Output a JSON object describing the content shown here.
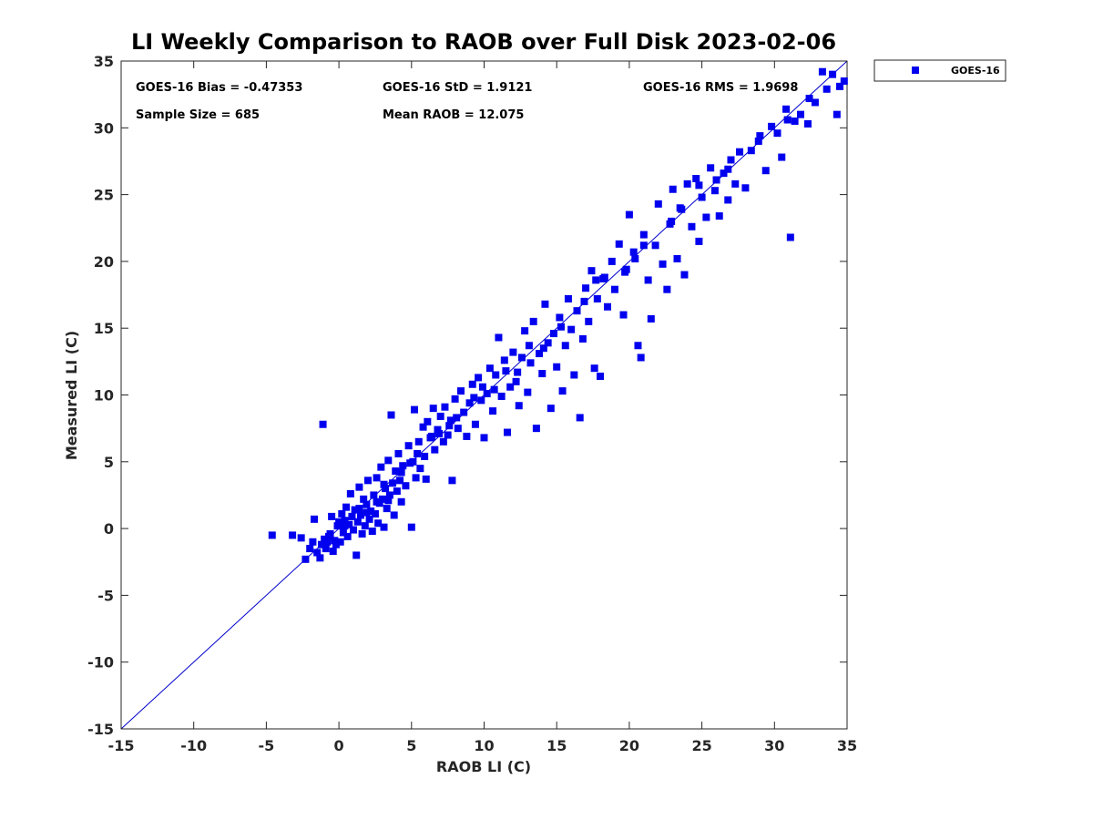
{
  "chart_data": {
    "type": "scatter",
    "title": "LI Weekly Comparison to RAOB over Full Disk 2023-02-06",
    "xlabel": "RAOB LI (C)",
    "ylabel": "Measured LI (C)",
    "xlim": [
      -15,
      35
    ],
    "ylim": [
      -15,
      35
    ],
    "xticks": [
      -15,
      -10,
      -5,
      0,
      5,
      10,
      15,
      20,
      25,
      30,
      35
    ],
    "yticks": [
      -15,
      -10,
      -5,
      0,
      5,
      10,
      15,
      20,
      25,
      30,
      35
    ],
    "grid": false,
    "legend_position": "outside-top-right",
    "reference_line": {
      "from": [
        -15,
        -15
      ],
      "to": [
        35,
        35
      ],
      "color": "#0000cc"
    },
    "stats": [
      {
        "label": "GOES-16 Bias = -0.47353"
      },
      {
        "label": "GOES-16 StD = 1.9121"
      },
      {
        "label": "GOES-16 RMS = 1.9698"
      },
      {
        "label": "Sample Size = 685"
      },
      {
        "label": "Mean RAOB = 12.075"
      }
    ],
    "series": [
      {
        "name": "GOES-16",
        "color": "#0000ee",
        "marker": "square",
        "points": [
          [
            -4.6,
            -0.5
          ],
          [
            -3.2,
            -0.5
          ],
          [
            -2.6,
            -0.7
          ],
          [
            -2.3,
            -2.3
          ],
          [
            -2.0,
            -1.5
          ],
          [
            -1.8,
            -1.0
          ],
          [
            -1.7,
            0.7
          ],
          [
            -1.5,
            -1.8
          ],
          [
            -1.3,
            -2.2
          ],
          [
            -1.2,
            -1.2
          ],
          [
            -1.1,
            7.8
          ],
          [
            -1.0,
            -0.8
          ],
          [
            -0.9,
            -1.5
          ],
          [
            -0.8,
            -1.0
          ],
          [
            -0.6,
            -0.4
          ],
          [
            -0.5,
            0.9
          ],
          [
            -0.4,
            -1.7
          ],
          [
            -0.3,
            -0.9
          ],
          [
            -0.2,
            -1.2
          ],
          [
            -0.1,
            0.2
          ],
          [
            0.0,
            0.5
          ],
          [
            0.1,
            -1.0
          ],
          [
            0.2,
            1.1
          ],
          [
            0.3,
            -0.3
          ],
          [
            0.4,
            0.6
          ],
          [
            0.5,
            1.6
          ],
          [
            0.6,
            -0.6
          ],
          [
            0.7,
            0.3
          ],
          [
            0.8,
            2.6
          ],
          [
            0.9,
            0.9
          ],
          [
            1.0,
            -0.1
          ],
          [
            1.1,
            1.4
          ],
          [
            1.2,
            -2.0
          ],
          [
            1.3,
            0.5
          ],
          [
            1.4,
            3.1
          ],
          [
            1.5,
            1.0
          ],
          [
            1.6,
            -0.4
          ],
          [
            1.7,
            2.2
          ],
          [
            1.8,
            0.2
          ],
          [
            1.9,
            1.8
          ],
          [
            2.0,
            3.6
          ],
          [
            2.1,
            0.7
          ],
          [
            2.2,
            1.3
          ],
          [
            2.3,
            -0.2
          ],
          [
            2.4,
            2.5
          ],
          [
            2.5,
            1.1
          ],
          [
            2.6,
            3.8
          ],
          [
            2.7,
            0.4
          ],
          [
            2.8,
            1.9
          ],
          [
            2.9,
            4.6
          ],
          [
            3.0,
            2.2
          ],
          [
            3.1,
            0.1
          ],
          [
            3.2,
            3.0
          ],
          [
            3.3,
            1.5
          ],
          [
            3.4,
            5.1
          ],
          [
            3.5,
            2.5
          ],
          [
            3.6,
            8.5
          ],
          [
            3.7,
            3.4
          ],
          [
            3.8,
            1.0
          ],
          [
            3.9,
            4.3
          ],
          [
            4.0,
            2.8
          ],
          [
            4.1,
            5.6
          ],
          [
            4.2,
            3.6
          ],
          [
            4.3,
            2.0
          ],
          [
            4.4,
            4.7
          ],
          [
            4.6,
            3.2
          ],
          [
            4.8,
            6.2
          ],
          [
            5.0,
            0.1
          ],
          [
            5.1,
            5.0
          ],
          [
            5.2,
            8.9
          ],
          [
            5.3,
            3.8
          ],
          [
            5.5,
            6.5
          ],
          [
            5.6,
            4.5
          ],
          [
            5.8,
            7.6
          ],
          [
            5.9,
            5.4
          ],
          [
            6.0,
            3.7
          ],
          [
            6.1,
            8.0
          ],
          [
            6.3,
            6.8
          ],
          [
            6.5,
            9.0
          ],
          [
            6.6,
            5.9
          ],
          [
            6.8,
            7.4
          ],
          [
            7.0,
            8.4
          ],
          [
            7.2,
            6.5
          ],
          [
            7.3,
            9.1
          ],
          [
            7.5,
            7.0
          ],
          [
            7.7,
            8.1
          ],
          [
            7.8,
            3.6
          ],
          [
            8.0,
            9.7
          ],
          [
            8.2,
            7.5
          ],
          [
            8.4,
            10.3
          ],
          [
            8.6,
            8.7
          ],
          [
            8.8,
            6.9
          ],
          [
            9.0,
            9.4
          ],
          [
            9.2,
            10.8
          ],
          [
            9.4,
            7.8
          ],
          [
            9.6,
            11.3
          ],
          [
            9.8,
            9.6
          ],
          [
            10.0,
            6.8
          ],
          [
            10.2,
            10.1
          ],
          [
            10.4,
            12.0
          ],
          [
            10.6,
            8.8
          ],
          [
            10.8,
            11.5
          ],
          [
            11.0,
            14.3
          ],
          [
            11.2,
            9.9
          ],
          [
            11.4,
            12.6
          ],
          [
            11.6,
            7.2
          ],
          [
            11.8,
            10.6
          ],
          [
            12.0,
            13.2
          ],
          [
            12.2,
            11.0
          ],
          [
            12.4,
            9.2
          ],
          [
            12.6,
            12.8
          ],
          [
            12.8,
            14.8
          ],
          [
            13.0,
            10.2
          ],
          [
            13.2,
            12.4
          ],
          [
            13.4,
            15.5
          ],
          [
            13.6,
            7.5
          ],
          [
            13.8,
            13.1
          ],
          [
            14.0,
            11.6
          ],
          [
            14.2,
            16.8
          ],
          [
            14.4,
            13.9
          ],
          [
            14.6,
            9.0
          ],
          [
            14.8,
            14.6
          ],
          [
            15.0,
            12.1
          ],
          [
            15.2,
            15.8
          ],
          [
            15.4,
            10.3
          ],
          [
            15.6,
            13.7
          ],
          [
            15.8,
            17.2
          ],
          [
            16.0,
            14.9
          ],
          [
            16.2,
            11.5
          ],
          [
            16.4,
            16.3
          ],
          [
            16.6,
            8.3
          ],
          [
            16.8,
            14.2
          ],
          [
            17.0,
            18.0
          ],
          [
            17.2,
            15.5
          ],
          [
            17.4,
            19.3
          ],
          [
            17.6,
            12.0
          ],
          [
            17.8,
            17.2
          ],
          [
            18.0,
            11.4
          ],
          [
            18.2,
            18.7
          ],
          [
            18.5,
            16.6
          ],
          [
            18.8,
            20.0
          ],
          [
            19.0,
            17.9
          ],
          [
            19.3,
            21.3
          ],
          [
            19.6,
            16.0
          ],
          [
            19.8,
            19.4
          ],
          [
            20.0,
            23.5
          ],
          [
            20.3,
            20.7
          ],
          [
            20.6,
            13.7
          ],
          [
            20.8,
            12.8
          ],
          [
            21.0,
            22.0
          ],
          [
            21.3,
            18.6
          ],
          [
            21.5,
            15.7
          ],
          [
            21.8,
            21.2
          ],
          [
            22.0,
            24.3
          ],
          [
            22.3,
            19.8
          ],
          [
            22.6,
            17.9
          ],
          [
            22.8,
            22.8
          ],
          [
            23.0,
            25.4
          ],
          [
            23.3,
            20.2
          ],
          [
            23.5,
            24.0
          ],
          [
            23.8,
            19.0
          ],
          [
            24.0,
            25.8
          ],
          [
            24.3,
            22.6
          ],
          [
            24.6,
            26.2
          ],
          [
            24.8,
            21.5
          ],
          [
            25.0,
            24.8
          ],
          [
            25.3,
            23.3
          ],
          [
            25.6,
            27.0
          ],
          [
            25.9,
            25.3
          ],
          [
            26.2,
            23.4
          ],
          [
            26.5,
            26.6
          ],
          [
            26.8,
            24.6
          ],
          [
            27.0,
            27.6
          ],
          [
            27.3,
            25.8
          ],
          [
            27.6,
            28.2
          ],
          [
            28.0,
            25.5
          ],
          [
            28.4,
            28.3
          ],
          [
            28.9,
            29.0
          ],
          [
            29.4,
            26.8
          ],
          [
            29.8,
            30.1
          ],
          [
            30.2,
            29.6
          ],
          [
            30.5,
            27.8
          ],
          [
            30.8,
            31.4
          ],
          [
            31.1,
            21.8
          ],
          [
            31.4,
            30.5
          ],
          [
            31.8,
            31.0
          ],
          [
            32.3,
            30.3
          ],
          [
            32.8,
            31.9
          ],
          [
            33.3,
            34.2
          ],
          [
            33.6,
            32.9
          ],
          [
            34.0,
            34.0
          ],
          [
            34.3,
            31.0
          ],
          [
            34.5,
            33.1
          ],
          [
            34.8,
            33.5
          ],
          [
            24.8,
            25.7
          ],
          [
            26.0,
            26.1
          ],
          [
            22.9,
            23.0
          ],
          [
            21.0,
            21.2
          ],
          [
            19.7,
            19.2
          ],
          [
            18.3,
            18.8
          ],
          [
            16.9,
            17.0
          ],
          [
            15.3,
            15.1
          ],
          [
            13.1,
            13.7
          ],
          [
            12.3,
            11.7
          ],
          [
            10.7,
            10.4
          ],
          [
            9.3,
            9.8
          ],
          [
            8.1,
            8.3
          ],
          [
            6.9,
            7.1
          ],
          [
            5.4,
            5.6
          ],
          [
            4.3,
            4.2
          ],
          [
            3.1,
            3.3
          ],
          [
            2.6,
            2.0
          ],
          [
            1.4,
            1.5
          ],
          [
            0.4,
            0.2
          ],
          [
            -0.7,
            -0.6
          ],
          [
            1.9,
            1.2
          ],
          [
            3.4,
            2.1
          ],
          [
            4.9,
            4.9
          ],
          [
            6.4,
            6.9
          ],
          [
            7.6,
            7.7
          ],
          [
            11.5,
            11.8
          ],
          [
            14.1,
            13.5
          ],
          [
            17.7,
            18.6
          ],
          [
            20.4,
            20.2
          ],
          [
            23.6,
            23.9
          ],
          [
            26.8,
            26.9
          ],
          [
            29.0,
            29.4
          ],
          [
            30.9,
            30.6
          ],
          [
            32.4,
            32.2
          ],
          [
            9.9,
            10.6
          ]
        ]
      }
    ]
  }
}
